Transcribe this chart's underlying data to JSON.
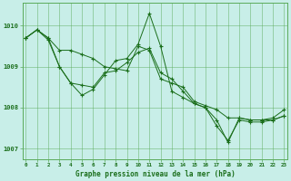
{
  "xlabel": "Graphe pression niveau de la mer (hPa)",
  "hours": [
    0,
    1,
    2,
    3,
    4,
    5,
    6,
    7,
    8,
    9,
    10,
    11,
    12,
    13,
    14,
    15,
    16,
    17,
    18,
    19,
    20,
    21,
    22,
    23
  ],
  "series": [
    [
      1009.7,
      1009.9,
      1009.7,
      1009.4,
      1009.4,
      1009.3,
      1009.2,
      1009.0,
      1008.95,
      1008.9,
      1009.5,
      1009.4,
      1008.7,
      1008.6,
      1008.5,
      1008.15,
      1008.05,
      1007.95,
      1007.75,
      1007.75,
      1007.7,
      1007.7,
      1007.7,
      1007.8
    ],
    [
      1009.7,
      1009.9,
      1009.7,
      1009.0,
      1008.6,
      1008.3,
      1008.45,
      1008.8,
      1009.15,
      1009.2,
      1009.55,
      1010.3,
      1009.5,
      1008.4,
      1008.25,
      1008.1,
      1008.0,
      1007.7,
      1007.15,
      1007.75,
      1007.7,
      1007.7,
      1007.75,
      1007.95
    ],
    [
      1009.7,
      1009.9,
      1009.65,
      1009.0,
      1008.6,
      1008.55,
      1008.5,
      1008.85,
      1008.9,
      1009.1,
      1009.35,
      1009.45,
      1008.85,
      1008.7,
      1008.4,
      1008.1,
      1008.0,
      1007.55,
      1007.2,
      1007.7,
      1007.65,
      1007.65,
      1007.7,
      1007.8
    ]
  ],
  "line_color": "#1a6e1a",
  "marker_color": "#1a6e1a",
  "bg_color": "#c8eee8",
  "grid_color": "#5aaa5a",
  "tick_label_color": "#1a6e1a",
  "label_color": "#1a6e1a",
  "ylim": [
    1006.75,
    1010.55
  ],
  "yticks": [
    1007,
    1008,
    1009,
    1010
  ],
  "figsize": [
    3.2,
    2.0
  ],
  "dpi": 100
}
